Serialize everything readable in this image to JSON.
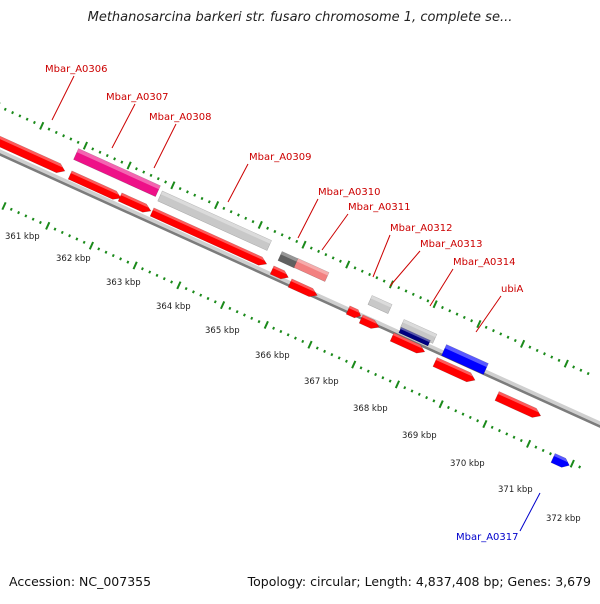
{
  "title": "Methanosarcina barkeri str. fusaro chromosome 1, complete se...",
  "accession": "Accession: NC_007355",
  "topology": "Topology: circular; Length: 4,837,408 bp; Genes: 3,679",
  "colors": {
    "red": "#ff0000",
    "magenta": "#ee1188",
    "light_gray": "#c8c8c8",
    "dark_gray": "#606060",
    "pink": "#f28080",
    "navy": "#000080",
    "blue": "#0000ff",
    "tick_green": "#1a8a1a",
    "label_red": "#cc0000",
    "label_blue": "#0000cc"
  },
  "scale": {
    "unit": "kbp",
    "ticks": [
      "361 kbp",
      "362 kbp",
      "363 kbp",
      "364 kbp",
      "365 kbp",
      "366 kbp",
      "367 kbp",
      "368 kbp",
      "369 kbp",
      "370 kbp",
      "371 kbp",
      "372 kbp"
    ]
  },
  "gene_labels": [
    {
      "name": "Mbar_A0306",
      "color": "red"
    },
    {
      "name": "Mbar_A0307",
      "color": "red"
    },
    {
      "name": "Mbar_A0308",
      "color": "red"
    },
    {
      "name": "Mbar_A0309",
      "color": "red"
    },
    {
      "name": "Mbar_A0310",
      "color": "red"
    },
    {
      "name": "Mbar_A0311",
      "color": "red"
    },
    {
      "name": "Mbar_A0312",
      "color": "red"
    },
    {
      "name": "Mbar_A0313",
      "color": "red"
    },
    {
      "name": "Mbar_A0314",
      "color": "red"
    },
    {
      "name": "ubiA",
      "color": "red"
    },
    {
      "name": "Mbar_A0317",
      "color": "blue"
    }
  ]
}
